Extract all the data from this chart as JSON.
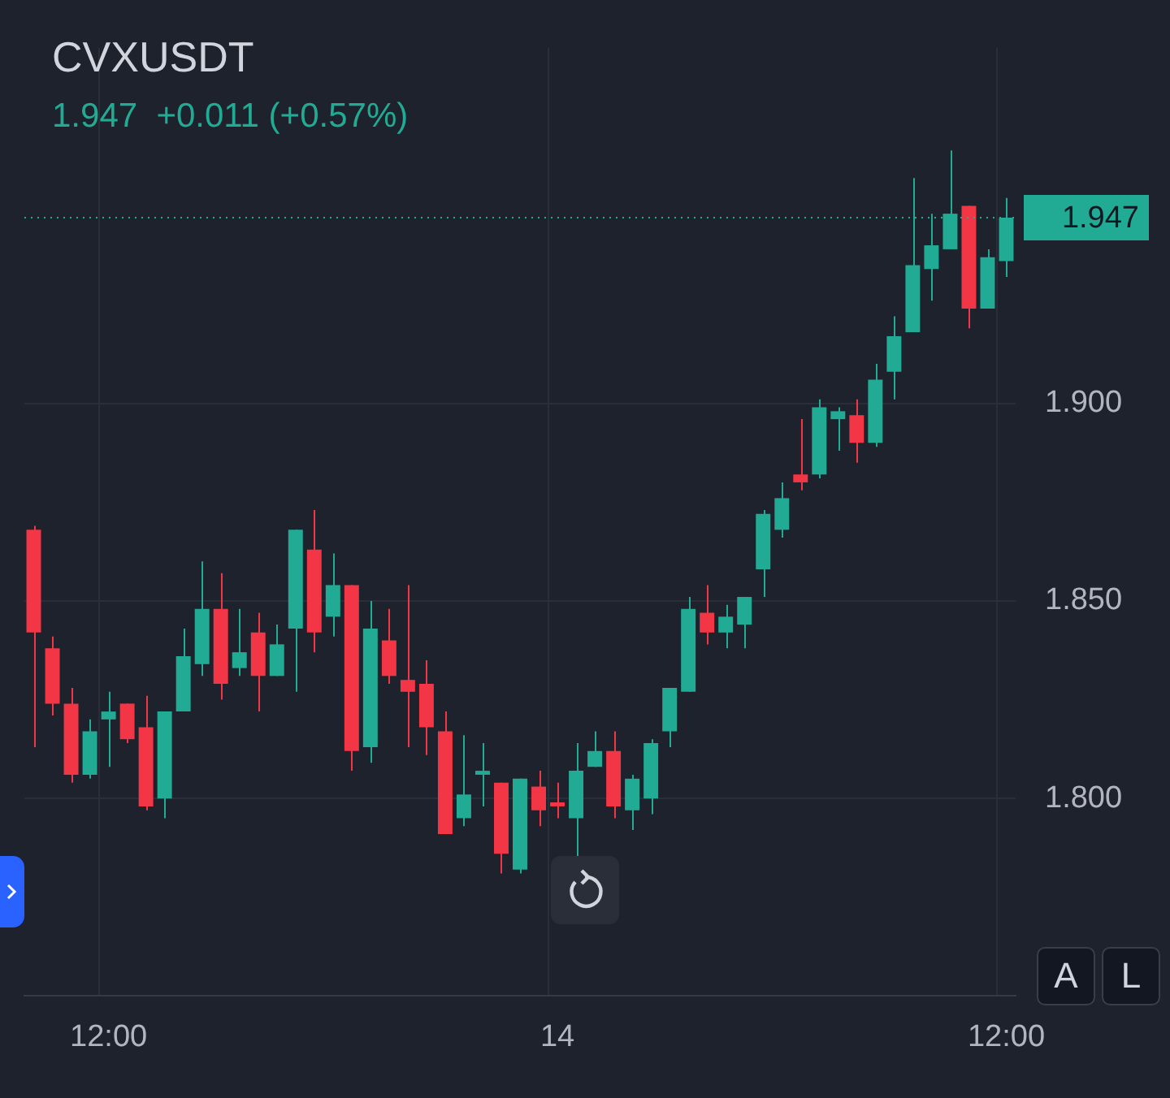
{
  "chart_data": {
    "type": "candlestick",
    "title": "CVXUSDT",
    "subtitle": "1.947  +0.011 (+0.57%)",
    "categories": [
      null,
      null,
      null,
      null,
      "12:00",
      null,
      null,
      null,
      null,
      null,
      null,
      null,
      null,
      null,
      null,
      null,
      null,
      null,
      null,
      null,
      null,
      null,
      null,
      null,
      null,
      null,
      null,
      null,
      "14",
      null,
      null,
      null,
      null,
      null,
      null,
      null,
      null,
      null,
      null,
      null,
      null,
      null,
      null,
      null,
      null,
      null,
      null,
      null,
      null,
      null,
      null,
      null,
      "12:00"
    ],
    "ohlc": [
      [
        1.868,
        1.869,
        1.813,
        1.842
      ],
      [
        1.838,
        1.841,
        1.821,
        1.824
      ],
      [
        1.824,
        1.828,
        1.804,
        1.806
      ],
      [
        1.806,
        1.82,
        1.805,
        1.817
      ],
      [
        1.82,
        1.827,
        1.808,
        1.822
      ],
      [
        1.824,
        1.824,
        1.814,
        1.815
      ],
      [
        1.818,
        1.826,
        1.797,
        1.798
      ],
      [
        1.8,
        1.822,
        1.795,
        1.822
      ],
      [
        1.822,
        1.843,
        1.822,
        1.836
      ],
      [
        1.834,
        1.86,
        1.831,
        1.848
      ],
      [
        1.848,
        1.857,
        1.825,
        1.829
      ],
      [
        1.833,
        1.848,
        1.831,
        1.837
      ],
      [
        1.842,
        1.847,
        1.822,
        1.831
      ],
      [
        1.831,
        1.844,
        1.831,
        1.839
      ],
      [
        1.843,
        1.868,
        1.827,
        1.868
      ],
      [
        1.863,
        1.873,
        1.837,
        1.842
      ],
      [
        1.846,
        1.862,
        1.841,
        1.854
      ],
      [
        1.854,
        1.854,
        1.807,
        1.812
      ],
      [
        1.813,
        1.85,
        1.809,
        1.843
      ],
      [
        1.84,
        1.848,
        1.829,
        1.831
      ],
      [
        1.83,
        1.854,
        1.813,
        1.827
      ],
      [
        1.829,
        1.835,
        1.811,
        1.818
      ],
      [
        1.817,
        1.822,
        1.791,
        1.791
      ],
      [
        1.795,
        1.816,
        1.793,
        1.801
      ],
      [
        1.806,
        1.814,
        1.798,
        1.807
      ],
      [
        1.804,
        1.804,
        1.781,
        1.786
      ],
      [
        1.782,
        1.805,
        1.781,
        1.805
      ],
      [
        1.803,
        1.807,
        1.793,
        1.797
      ],
      [
        1.799,
        1.804,
        1.795,
        1.798
      ],
      [
        1.795,
        1.814,
        1.785,
        1.807
      ],
      [
        1.808,
        1.817,
        1.808,
        1.812
      ],
      [
        1.812,
        1.817,
        1.795,
        1.798
      ],
      [
        1.797,
        1.806,
        1.792,
        1.805
      ],
      [
        1.8,
        1.815,
        1.796,
        1.814
      ],
      [
        1.817,
        1.828,
        1.813,
        1.828
      ],
      [
        1.827,
        1.851,
        1.827,
        1.848
      ],
      [
        1.847,
        1.854,
        1.839,
        1.842
      ],
      [
        1.842,
        1.849,
        1.838,
        1.846
      ],
      [
        1.844,
        1.851,
        1.838,
        1.851
      ],
      [
        1.858,
        1.873,
        1.851,
        1.872
      ],
      [
        1.868,
        1.88,
        1.866,
        1.876
      ],
      [
        1.882,
        1.896,
        1.878,
        1.88
      ],
      [
        1.882,
        1.901,
        1.881,
        1.899
      ],
      [
        1.896,
        1.899,
        1.888,
        1.898
      ],
      [
        1.897,
        1.901,
        1.885,
        1.89
      ],
      [
        1.89,
        1.91,
        1.889,
        1.906
      ],
      [
        1.908,
        1.922,
        1.901,
        1.917
      ],
      [
        1.918,
        1.957,
        1.918,
        1.935
      ],
      [
        1.934,
        1.948,
        1.926,
        1.94
      ],
      [
        1.939,
        1.964,
        1.939,
        1.948
      ],
      [
        1.95,
        1.95,
        1.919,
        1.924
      ],
      [
        1.924,
        1.939,
        1.924,
        1.937
      ],
      [
        1.936,
        1.952,
        1.932,
        1.947
      ]
    ],
    "colors": [
      "#f23645",
      "#f23645",
      "#f23645",
      "#22ab94",
      "#22ab94",
      "#f23645",
      "#f23645",
      "#22ab94",
      "#22ab94",
      "#22ab94",
      "#f23645",
      "#22ab94",
      "#f23645",
      "#22ab94",
      "#22ab94",
      "#f23645",
      "#22ab94",
      "#f23645",
      "#22ab94",
      "#f23645",
      "#f23645",
      "#f23645",
      "#f23645",
      "#22ab94",
      "#22ab94",
      "#f23645",
      "#22ab94",
      "#f23645",
      "#f23645",
      "#22ab94",
      "#22ab94",
      "#f23645",
      "#22ab94",
      "#22ab94",
      "#22ab94",
      "#22ab94",
      "#f23645",
      "#22ab94",
      "#22ab94",
      "#22ab94",
      "#22ab94",
      "#f23645",
      "#22ab94",
      "#22ab94",
      "#f23645",
      "#22ab94",
      "#22ab94",
      "#22ab94",
      "#22ab94",
      "#22ab94",
      "#f23645",
      "#22ab94",
      "#22ab94"
    ],
    "ylim": [
      1.75,
      1.99
    ],
    "yticks": [
      {
        "value": 1.8,
        "label": "1.800"
      },
      {
        "value": 1.85,
        "label": "1.850"
      },
      {
        "value": 1.9,
        "label": "1.900"
      }
    ],
    "ref_lines": [
      {
        "axis": "y",
        "value": 1.947,
        "label": "1.947",
        "color": "#22ab94",
        "line_style": "dotted"
      }
    ],
    "annotations": [
      "A",
      "L"
    ],
    "grid": true,
    "legend": false
  }
}
